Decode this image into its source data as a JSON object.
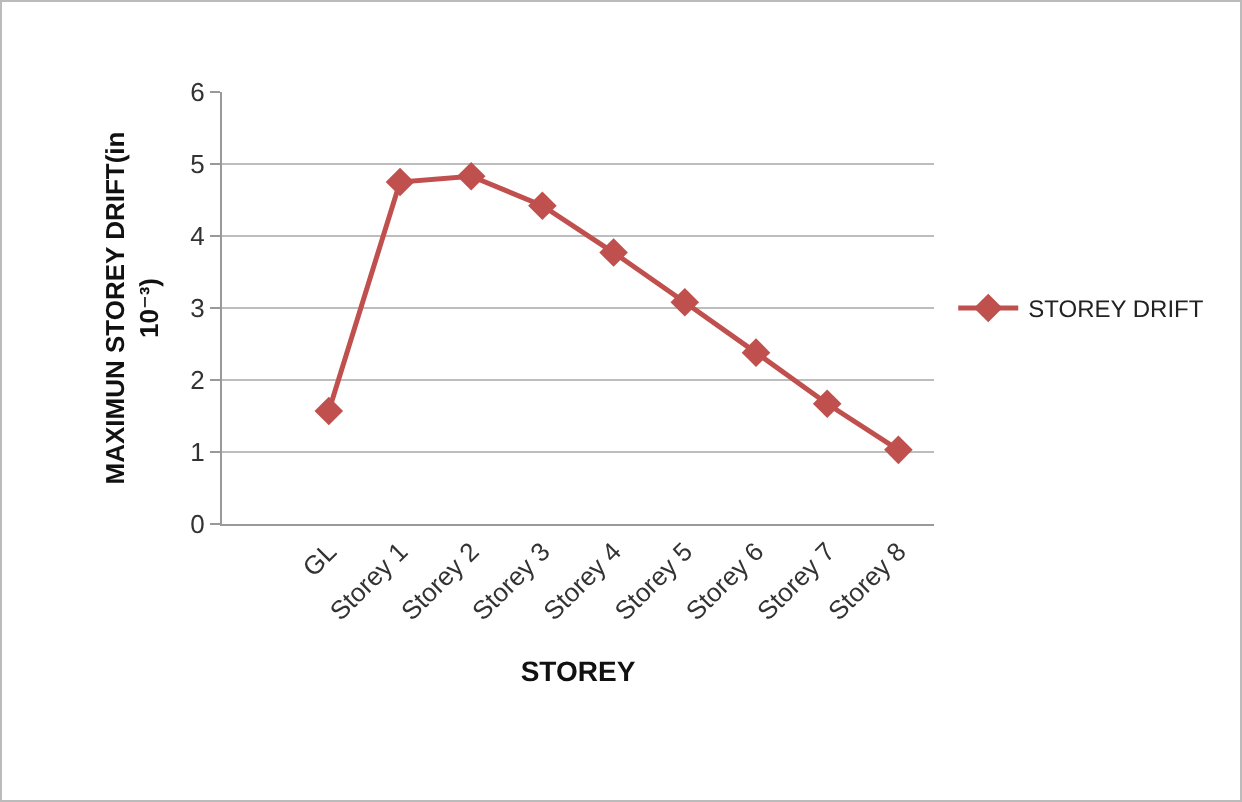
{
  "chart_data": {
    "type": "line",
    "xlabel": "STOREY",
    "ylabel": "MAXIMUN STOREY DRIFT(in 10⁻³)",
    "categories": [
      null,
      "GL",
      "Storey 1",
      "Storey 2",
      "Storey 3",
      "Storey 4",
      "Storey 5",
      "Storey 6",
      "Storey 7",
      "Storey 8"
    ],
    "series": [
      {
        "name": "STOREY DRIFT",
        "color": "#c0504d",
        "values": [
          null,
          1.57,
          4.75,
          4.83,
          4.42,
          3.77,
          3.08,
          2.38,
          1.67,
          1.03
        ]
      }
    ],
    "ylim": [
      0,
      6
    ],
    "yticks": [
      0,
      1,
      2,
      3,
      4,
      5,
      6
    ],
    "grid": "y",
    "legend": "right",
    "marker": "diamond",
    "line_style": "solid"
  }
}
